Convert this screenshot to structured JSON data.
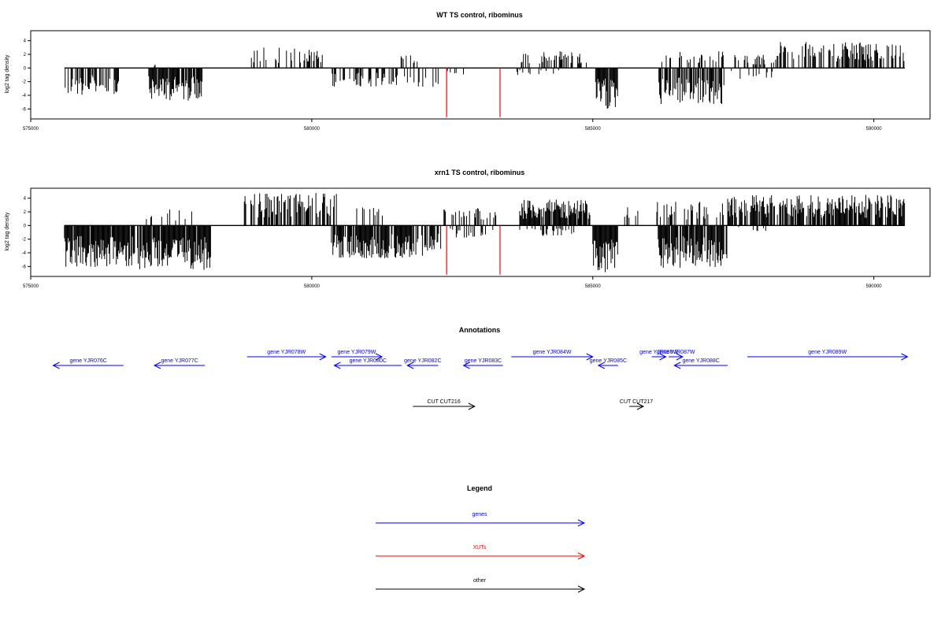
{
  "colors": {
    "genes": "#0000ff",
    "xuts": "#ff0000",
    "other": "#000000",
    "axis": "#000000"
  },
  "chart_data": [
    {
      "type": "bar",
      "title": "WT TS control, ribominus",
      "ylabel": "log2 tag density",
      "xlim": [
        575000,
        591000
      ],
      "ylim": [
        -7,
        5
      ],
      "xticks": [
        575000,
        580000,
        585000,
        590000
      ],
      "xtick_labels": [
        "575000",
        "580000",
        "585000",
        "590000"
      ],
      "yticks": [
        4,
        2,
        0,
        -2,
        -4,
        -6
      ],
      "ytick_labels": [
        "4",
        "2",
        "0",
        "-2",
        "-4",
        "-6"
      ],
      "baseline": {
        "x": [
          575600,
          590550
        ],
        "y": 0
      },
      "regions": [
        {
          "x": [
            575600,
            576650
          ],
          "sign": -1,
          "density": 0.55,
          "max": 4.0,
          "color": "#000000"
        },
        {
          "x": [
            577100,
            578050
          ],
          "sign": -1,
          "density": 0.9,
          "max": 4.8,
          "color": "#000000"
        },
        {
          "x": [
            577200,
            577220
          ],
          "sign": 1,
          "density": 0.3,
          "max": 1.0,
          "color": "#000000"
        },
        {
          "x": [
            578900,
            580200
          ],
          "sign": 1,
          "density": 0.35,
          "max": 3.0,
          "color": "#000000"
        },
        {
          "x": [
            580350,
            581550
          ],
          "sign": -1,
          "density": 0.4,
          "max": 2.8,
          "color": "#000000"
        },
        {
          "x": [
            581550,
            581950
          ],
          "sign": 1,
          "density": 0.25,
          "max": 2.0,
          "color": "#000000"
        },
        {
          "x": [
            581650,
            582250
          ],
          "sign": -1,
          "density": 0.3,
          "max": 2.8,
          "color": "#000000"
        },
        {
          "x": [
            582400,
            582750
          ],
          "sign": -1,
          "density": 0.2,
          "max": 1.0,
          "color": "#000000"
        },
        {
          "x": [
            583650,
            584900
          ],
          "sign": 1,
          "density": 0.35,
          "max": 2.6,
          "color": "#000000"
        },
        {
          "x": [
            583650,
            584400
          ],
          "sign": -1,
          "density": 0.2,
          "max": 1.2,
          "color": "#000000"
        },
        {
          "x": [
            585050,
            585450
          ],
          "sign": -1,
          "density": 0.95,
          "max": 6.0,
          "color": "#000000"
        },
        {
          "x": [
            586150,
            587350
          ],
          "sign": -1,
          "density": 0.65,
          "max": 5.4,
          "color": "#000000"
        },
        {
          "x": [
            586150,
            587350
          ],
          "sign": 1,
          "density": 0.25,
          "max": 2.6,
          "color": "#000000"
        },
        {
          "x": [
            587500,
            588300
          ],
          "sign": 1,
          "density": 0.3,
          "max": 2.0,
          "color": "#000000"
        },
        {
          "x": [
            587400,
            588200
          ],
          "sign": -1,
          "density": 0.15,
          "max": 1.6,
          "color": "#000000"
        },
        {
          "x": [
            588300,
            590550
          ],
          "sign": 1,
          "density": 0.5,
          "max": 3.8,
          "color": "#000000"
        }
      ],
      "markers": [
        {
          "x": 582400,
          "y": -7.2,
          "color": "#ff0000"
        },
        {
          "x": 583350,
          "y": -7.2,
          "color": "#ff0000"
        }
      ]
    },
    {
      "type": "bar",
      "title": "xrn1 TS control, ribominus",
      "ylabel": "log2 tag density",
      "xlim": [
        575000,
        591000
      ],
      "ylim": [
        -7,
        5
      ],
      "xticks": [
        575000,
        580000,
        585000,
        590000
      ],
      "xtick_labels": [
        "575000",
        "580000",
        "585000",
        "590000"
      ],
      "yticks": [
        4,
        2,
        0,
        -2,
        -4,
        -6
      ],
      "ytick_labels": [
        "4",
        "2",
        "0",
        "-2",
        "-4",
        "-6"
      ],
      "baseline": {
        "x": [
          575600,
          590550
        ],
        "y": 0
      },
      "regions": [
        {
          "x": [
            575600,
            576850
          ],
          "sign": -1,
          "density": 0.95,
          "max": 6.2,
          "color": "#000000"
        },
        {
          "x": [
            576850,
            577900
          ],
          "sign": 1,
          "density": 0.2,
          "max": 2.8,
          "color": "#000000"
        },
        {
          "x": [
            576900,
            578200
          ],
          "sign": -1,
          "density": 0.95,
          "max": 6.5,
          "color": "#000000"
        },
        {
          "x": [
            578800,
            580450
          ],
          "sign": 1,
          "density": 0.65,
          "max": 4.8,
          "color": "#000000"
        },
        {
          "x": [
            580350,
            581800
          ],
          "sign": -1,
          "density": 0.85,
          "max": 4.8,
          "color": "#000000"
        },
        {
          "x": [
            580800,
            581300
          ],
          "sign": 1,
          "density": 0.3,
          "max": 2.8,
          "color": "#000000"
        },
        {
          "x": [
            581800,
            582300
          ],
          "sign": -1,
          "density": 0.75,
          "max": 4.6,
          "color": "#000000"
        },
        {
          "x": [
            582300,
            583300
          ],
          "sign": 1,
          "density": 0.3,
          "max": 2.6,
          "color": "#000000"
        },
        {
          "x": [
            582350,
            583300
          ],
          "sign": -1,
          "density": 0.3,
          "max": 1.8,
          "color": "#000000"
        },
        {
          "x": [
            583700,
            584950
          ],
          "sign": 1,
          "density": 0.85,
          "max": 3.8,
          "color": "#000000"
        },
        {
          "x": [
            583700,
            584700
          ],
          "sign": -1,
          "density": 0.25,
          "max": 1.6,
          "color": "#000000"
        },
        {
          "x": [
            585000,
            585450
          ],
          "sign": -1,
          "density": 0.98,
          "max": 7.0,
          "color": "#000000"
        },
        {
          "x": [
            585450,
            586200
          ],
          "sign": 1,
          "density": 0.15,
          "max": 2.8,
          "color": "#000000"
        },
        {
          "x": [
            586150,
            587400
          ],
          "sign": -1,
          "density": 0.9,
          "max": 6.2,
          "color": "#000000"
        },
        {
          "x": [
            586150,
            587400
          ],
          "sign": 1,
          "density": 0.3,
          "max": 3.5,
          "color": "#000000"
        },
        {
          "x": [
            587400,
            590550
          ],
          "sign": 1,
          "density": 0.8,
          "max": 4.5,
          "color": "#000000"
        },
        {
          "x": [
            587400,
            588100
          ],
          "sign": -1,
          "density": 0.1,
          "max": 1.0,
          "color": "#000000"
        }
      ],
      "markers": [
        {
          "x": 582400,
          "y": -7.2,
          "color": "#ff0000"
        },
        {
          "x": 583350,
          "y": -7.2,
          "color": "#ff0000"
        }
      ]
    }
  ],
  "annotations": {
    "title": "Annotations",
    "genes": [
      {
        "label": "gene YJR076C",
        "strand": "-",
        "start": 575400,
        "end": 576650,
        "row": 1,
        "color": "#0000ff"
      },
      {
        "label": "gene YJR077C",
        "strand": "-",
        "start": 577200,
        "end": 578100,
        "row": 1,
        "color": "#0000ff"
      },
      {
        "label": "gene YJR078W",
        "strand": "+",
        "start": 578850,
        "end": 580250,
        "row": 0,
        "color": "#0000ff"
      },
      {
        "label": "gene YJR079W",
        "strand": "+",
        "start": 580350,
        "end": 581250,
        "row": 0,
        "color": "#0000ff"
      },
      {
        "label": "gene YJR080C",
        "strand": "-",
        "start": 580400,
        "end": 581600,
        "row": 1,
        "color": "#0000ff"
      },
      {
        "label": "gene YJR082C",
        "strand": "-",
        "start": 581700,
        "end": 582250,
        "row": 1,
        "color": "#0000ff"
      },
      {
        "label": "gene YJR083C",
        "strand": "-",
        "start": 582700,
        "end": 583400,
        "row": 1,
        "color": "#0000ff"
      },
      {
        "label": "gene YJR084W",
        "strand": "+",
        "start": 583550,
        "end": 585000,
        "row": 0,
        "color": "#0000ff"
      },
      {
        "label": "gene YJR085C",
        "strand": "-",
        "start": 585100,
        "end": 585450,
        "row": 1,
        "color": "#0000ff"
      },
      {
        "label": "gene YJR086W",
        "strand": "+",
        "start": 586050,
        "end": 586300,
        "row": 0,
        "color": "#0000ff"
      },
      {
        "label": "gene YJR087W",
        "strand": "+",
        "start": 586350,
        "end": 586600,
        "row": 0,
        "color": "#0000ff"
      },
      {
        "label": "gene YJR088C",
        "strand": "-",
        "start": 586450,
        "end": 587400,
        "row": 1,
        "color": "#0000ff"
      },
      {
        "label": "gene YJR089W",
        "strand": "+",
        "start": 587750,
        "end": 590600,
        "row": 0,
        "color": "#0000ff"
      }
    ],
    "other": [
      {
        "label": "CUT CUT216",
        "strand": "+",
        "start": 581800,
        "end": 582900,
        "color": "#000000"
      },
      {
        "label": "CUT CUT217",
        "strand": "+",
        "start": 585650,
        "end": 585900,
        "color": "#000000"
      }
    ]
  },
  "legend": {
    "title": "Legend",
    "items": [
      {
        "label": "genes",
        "color": "#0000ff"
      },
      {
        "label": "XUTs",
        "color": "#ff0000"
      },
      {
        "label": "other",
        "color": "#000000"
      }
    ]
  }
}
